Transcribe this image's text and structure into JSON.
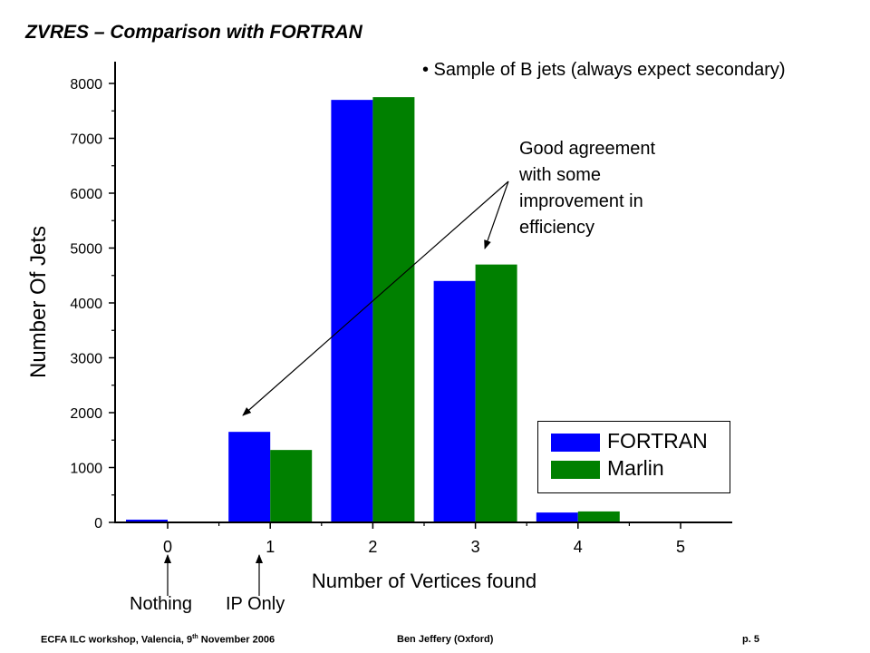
{
  "slide": {
    "title": "ZVRES – Comparison with FORTRAN",
    "bullet": "• Sample of B jets (always expect secondary)",
    "annotation_lines": [
      "Good agreement",
      "with some",
      "improvement in",
      "efficiency"
    ],
    "markers": {
      "nothing": "Nothing",
      "ip_only": "IP Only"
    },
    "footer": {
      "left_prefix": "ECFA ILC workshop, Valencia, 9",
      "left_sup": "th",
      "left_suffix": " November  2006",
      "center": "Ben Jeffery (Oxford)",
      "right": "p. 5"
    }
  },
  "colors": {
    "fortran": "#0000FF",
    "marlin": "#008000"
  },
  "chart_data": {
    "type": "bar",
    "categories": [
      "0",
      "1",
      "2",
      "3",
      "4",
      "5"
    ],
    "series": [
      {
        "name": "FORTRAN",
        "values": [
          50,
          1650,
          7700,
          4400,
          180,
          0
        ]
      },
      {
        "name": "Marlin",
        "values": [
          0,
          1320,
          7750,
          4700,
          200,
          0
        ]
      }
    ],
    "xlabel": "Number of Vertices found",
    "ylabel": "Number Of Jets",
    "yticks": [
      0,
      1000,
      2000,
      3000,
      4000,
      5000,
      6000,
      7000,
      8000
    ],
    "ylim": [
      0,
      8000
    ],
    "legend_position": "lower-right",
    "grid": false
  }
}
